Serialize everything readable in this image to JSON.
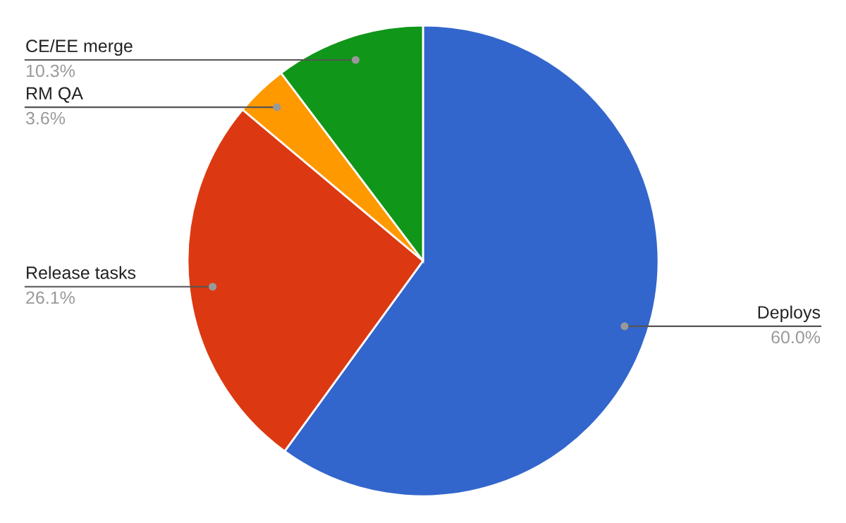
{
  "chart_data": {
    "type": "pie",
    "categories": [
      "Deploys",
      "Release tasks",
      "RM QA",
      "CE/EE merge"
    ],
    "values": [
      60.0,
      26.1,
      3.6,
      10.3
    ],
    "value_labels": [
      "60.0%",
      "26.1%",
      "3.6%",
      "10.3%"
    ],
    "colors": [
      "#3366cc",
      "#dc3912",
      "#ff9900",
      "#109618"
    ]
  }
}
